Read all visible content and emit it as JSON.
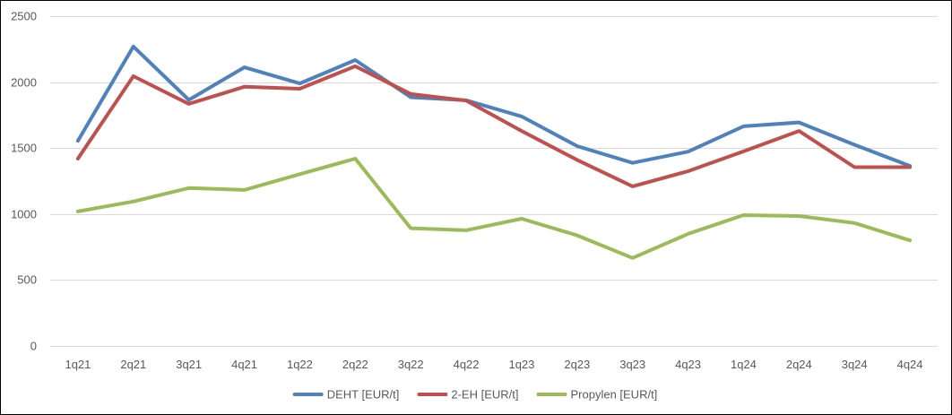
{
  "chart_data": {
    "type": "line",
    "title": "",
    "xlabel": "",
    "ylabel": "",
    "categories": [
      "1q21",
      "2q21",
      "3q21",
      "4q21",
      "1q22",
      "2q22",
      "3q22",
      "4q22",
      "1q23",
      "2q23",
      "3q23",
      "4q23",
      "1q24",
      "2q24",
      "3q24",
      "4q24"
    ],
    "ylim": [
      0,
      2500
    ],
    "yticks": [
      0,
      500,
      1000,
      1500,
      2000,
      2500
    ],
    "grid": true,
    "legend_position": "bottom",
    "series": [
      {
        "name": "DEHT [EUR/t]",
        "color": "#4F81BD",
        "values": [
          1555,
          2270,
          1865,
          2112,
          1990,
          2167,
          1885,
          1862,
          1740,
          1515,
          1388,
          1473,
          1665,
          1694,
          1525,
          1365
        ]
      },
      {
        "name": "2-EH [EUR/t]",
        "color": "#C0504D",
        "values": [
          1420,
          2045,
          1835,
          1965,
          1950,
          2120,
          1910,
          1860,
          1630,
          1410,
          1210,
          1325,
          1475,
          1630,
          1355,
          1355
        ]
      },
      {
        "name": "Propylen [EUR/t]",
        "color": "#9BBB59",
        "values": [
          1020,
          1095,
          1197,
          1183,
          1302,
          1420,
          893,
          877,
          965,
          838,
          667,
          850,
          992,
          985,
          932,
          800
        ]
      }
    ]
  }
}
